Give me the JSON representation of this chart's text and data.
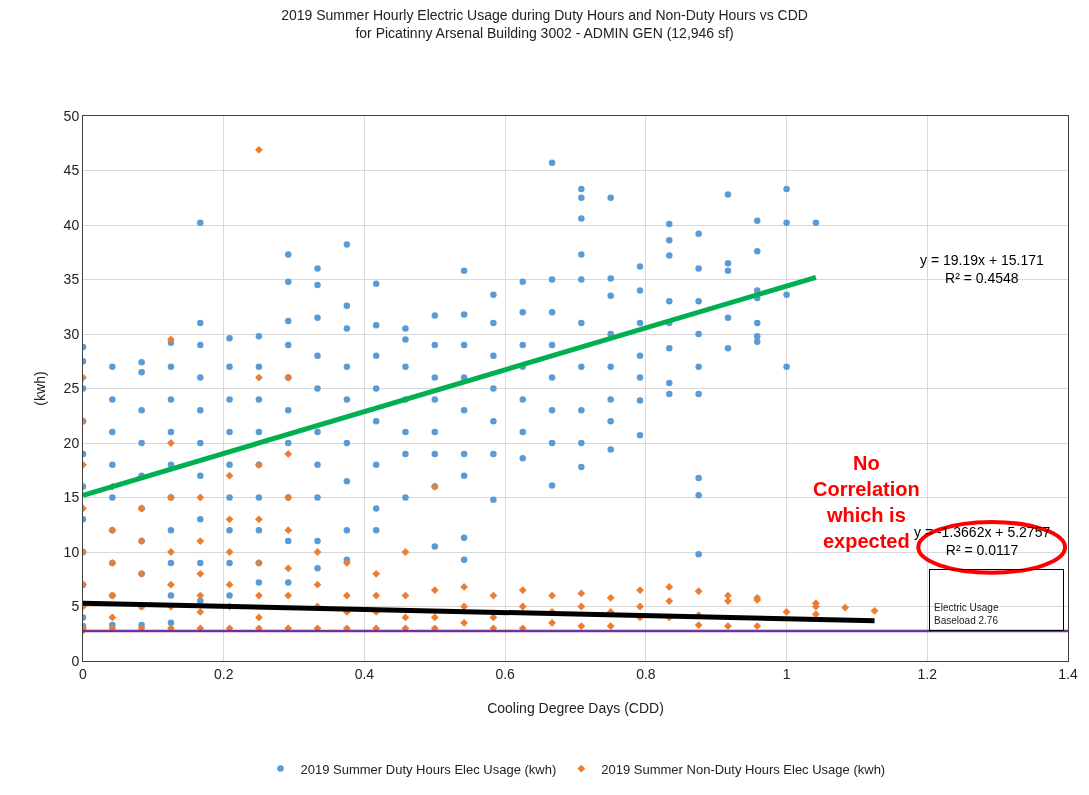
{
  "chart_data": {
    "type": "scatter",
    "title": "2019 Summer Hourly Electric Usage during Duty Hours and Non-Duty Hours vs CDD\nfor Picatinny Arsenal Building 3002 - ADMIN GEN (12,946 sf)",
    "xlabel": "Cooling Degree Days (CDD)",
    "ylabel": "(kwh)",
    "series": [
      {
        "name": "2019 Summer Duty Hours Elec Usage (kwh)",
        "color": "#5b9bd5",
        "marker": "circle",
        "x": [
          0,
          0,
          0,
          0,
          0,
          0,
          0,
          0,
          0,
          0,
          0,
          0.0417,
          0.0417,
          0.0417,
          0.0417,
          0.0417,
          0.0417,
          0.0417,
          0.0417,
          0.0417,
          0.0833,
          0.0833,
          0.0833,
          0.0833,
          0.0833,
          0.0833,
          0.0833,
          0.0833,
          0.0833,
          0.0833,
          0.125,
          0.125,
          0.125,
          0.125,
          0.125,
          0.125,
          0.125,
          0.125,
          0.125,
          0.125,
          0.1667,
          0.1667,
          0.1667,
          0.1667,
          0.1667,
          0.1667,
          0.1667,
          0.1667,
          0.1667,
          0.1667,
          0.2083,
          0.2083,
          0.2083,
          0.2083,
          0.2083,
          0.2083,
          0.2083,
          0.2083,
          0.2083,
          0.25,
          0.25,
          0.25,
          0.25,
          0.25,
          0.25,
          0.25,
          0.25,
          0.25,
          0.2917,
          0.2917,
          0.2917,
          0.2917,
          0.2917,
          0.2917,
          0.2917,
          0.2917,
          0.2917,
          0.2917,
          0.3333,
          0.3333,
          0.3333,
          0.3333,
          0.3333,
          0.3333,
          0.3333,
          0.3333,
          0.3333,
          0.3333,
          0.375,
          0.375,
          0.375,
          0.375,
          0.375,
          0.375,
          0.375,
          0.375,
          0.375,
          0.4167,
          0.4167,
          0.4167,
          0.4167,
          0.4167,
          0.4167,
          0.4167,
          0.4167,
          0.4583,
          0.4583,
          0.4583,
          0.4583,
          0.4583,
          0.4583,
          0.4583,
          0.5,
          0.5,
          0.5,
          0.5,
          0.5,
          0.5,
          0.5,
          0.5,
          0.5417,
          0.5417,
          0.5417,
          0.5417,
          0.5417,
          0.5417,
          0.5417,
          0.5417,
          0.5417,
          0.5833,
          0.5833,
          0.5833,
          0.5833,
          0.5833,
          0.5833,
          0.5833,
          0.625,
          0.625,
          0.625,
          0.625,
          0.625,
          0.625,
          0.625,
          0.6667,
          0.6667,
          0.6667,
          0.6667,
          0.6667,
          0.6667,
          0.6667,
          0.6667,
          0.7083,
          0.7083,
          0.7083,
          0.7083,
          0.7083,
          0.7083,
          0.7083,
          0.7083,
          0.7083,
          0.7083,
          0.75,
          0.75,
          0.75,
          0.75,
          0.75,
          0.75,
          0.75,
          0.75,
          0.7917,
          0.7917,
          0.7917,
          0.7917,
          0.7917,
          0.7917,
          0.7917,
          0.8333,
          0.8333,
          0.8333,
          0.8333,
          0.8333,
          0.8333,
          0.8333,
          0.8333,
          0.875,
          0.875,
          0.875,
          0.875,
          0.875,
          0.875,
          0.875,
          0.875,
          0.875,
          0.9167,
          0.9167,
          0.9167,
          0.9167,
          0.9167,
          0.9583,
          0.9583,
          0.9583,
          0.9583,
          0.9583,
          0.9583,
          0.9583,
          1,
          1,
          1,
          1,
          1.0417
        ],
        "values": [
          28.8,
          27.5,
          25,
          22,
          19,
          16,
          13,
          10,
          7,
          4,
          3.2,
          27,
          24,
          21,
          18,
          15,
          12,
          9,
          6,
          3.3,
          27.4,
          26.5,
          23,
          20,
          17,
          14,
          11,
          8,
          5,
          3.3,
          29.2,
          27,
          24,
          21,
          18,
          15,
          12,
          9,
          6,
          3.5,
          40.2,
          31,
          29,
          26,
          23,
          20,
          17,
          13,
          9,
          5.5,
          29.6,
          27,
          24,
          21,
          18,
          15,
          12,
          9,
          6,
          29.8,
          27,
          24,
          21,
          18,
          15,
          12,
          9,
          7.2,
          37.3,
          34.8,
          31.2,
          29,
          26,
          23,
          20,
          15,
          11,
          7.2,
          36,
          34.5,
          31.5,
          28,
          25,
          21,
          18,
          15,
          11,
          8.5,
          38.2,
          32.6,
          30.5,
          27,
          24,
          20,
          16.5,
          12,
          9.3,
          34.6,
          30.8,
          28,
          25,
          22,
          18,
          14,
          12,
          30.5,
          29.5,
          27,
          24,
          21,
          19,
          15,
          31.7,
          29,
          26,
          24,
          21,
          19,
          16,
          10.5,
          35.8,
          31.8,
          29,
          26,
          23,
          19,
          17,
          11.3,
          9.3,
          33.6,
          31,
          28,
          25,
          22,
          19,
          14.8,
          34.8,
          32,
          29,
          27,
          24,
          21,
          18.6,
          45.7,
          35,
          32,
          29,
          26,
          23,
          20,
          16.1,
          43.3,
          42.5,
          40.6,
          37.3,
          35,
          31,
          27,
          23,
          20,
          17.8,
          42.5,
          35.1,
          33.5,
          30,
          27,
          24,
          22,
          19.4,
          36.2,
          34,
          31,
          28,
          26,
          23.9,
          20.7,
          40.1,
          38.6,
          37.2,
          33,
          31,
          28.7,
          25.5,
          24.5,
          39.2,
          36,
          33,
          30,
          27,
          24.5,
          16.8,
          15.2,
          9.8,
          42.8,
          36.5,
          35.8,
          31.5,
          28.7,
          40.4,
          37.6,
          34,
          33.3,
          31,
          29.8,
          29.3,
          43.3,
          40.2,
          33.6,
          27,
          40.2
        ]
      },
      {
        "name": "2019 Summer Non-Duty Hours Elec Usage (kwh)",
        "color": "#ed7d31",
        "marker": "diamond",
        "x": [
          0,
          0,
          0,
          0,
          0,
          0,
          0,
          0,
          0,
          0.0417,
          0.0417,
          0.0417,
          0.0417,
          0.0417,
          0.0417,
          0.0833,
          0.0833,
          0.0833,
          0.0833,
          0.0833,
          0.125,
          0.125,
          0.125,
          0.125,
          0.125,
          0.125,
          0.125,
          0.1667,
          0.1667,
          0.1667,
          0.1667,
          0.1667,
          0.1667,
          0.2083,
          0.2083,
          0.2083,
          0.2083,
          0.2083,
          0.2083,
          0.25,
          0.25,
          0.25,
          0.25,
          0.25,
          0.25,
          0.25,
          0.25,
          0.2917,
          0.2917,
          0.2917,
          0.2917,
          0.2917,
          0.2917,
          0.2917,
          0.3333,
          0.3333,
          0.3333,
          0.3333,
          0.375,
          0.375,
          0.375,
          0.375,
          0.4167,
          0.4167,
          0.4167,
          0.4167,
          0.4583,
          0.4583,
          0.4583,
          0.4583,
          0.5,
          0.5,
          0.5,
          0.5,
          0.5417,
          0.5417,
          0.5417,
          0.5833,
          0.5833,
          0.5833,
          0.625,
          0.625,
          0.625,
          0.6667,
          0.6667,
          0.6667,
          0.7083,
          0.7083,
          0.7083,
          0.75,
          0.75,
          0.75,
          0.7917,
          0.7917,
          0.7917,
          0.8333,
          0.8333,
          0.8333,
          0.875,
          0.875,
          0.875,
          0.9167,
          0.9167,
          0.9167,
          0.9583,
          0.9583,
          0.9583,
          1,
          1.0417,
          1.0417,
          1.0417,
          1.0833,
          1.125
        ],
        "values": [
          26,
          22,
          18,
          14,
          10,
          7,
          5,
          3,
          2.8,
          16,
          12,
          9,
          6,
          4,
          3,
          14,
          11,
          8,
          5,
          3,
          29.5,
          20,
          15,
          10,
          7,
          5,
          3,
          15,
          11,
          8,
          6,
          4.5,
          3,
          17,
          13,
          10,
          7,
          5,
          3,
          46.9,
          26,
          18,
          13,
          9,
          6,
          4,
          3,
          26,
          19,
          15,
          12,
          8.5,
          6,
          3,
          10,
          7,
          5,
          3,
          9,
          6,
          4.5,
          3,
          8,
          6,
          4.5,
          3,
          10,
          6,
          4,
          3,
          16,
          6.5,
          4,
          3,
          6.8,
          5,
          3.5,
          6,
          4,
          3,
          6.5,
          5,
          3,
          6,
          4.5,
          3.5,
          6.2,
          5,
          3.2,
          5.8,
          4.5,
          3.2,
          6.5,
          5,
          4,
          6.8,
          5.5,
          4,
          6.4,
          4.2,
          3.3,
          6,
          5.5,
          3.2,
          5.8,
          5.6,
          3.2,
          4.5,
          5.3,
          5,
          4.3,
          4.9,
          4.6
        ]
      },
      {
        "type": "line",
        "color": "#00b050",
        "x": [
          0,
          1.0417
        ],
        "values": [
          15.2,
          35.2
        ]
      },
      {
        "type": "line",
        "color": "#000000",
        "x": [
          0,
          1.125
        ],
        "values": [
          5.3,
          3.7
        ]
      }
    ],
    "ref_lines": [
      {
        "axis": "y",
        "value": 2.76,
        "label": "Electric Usage\nBaseload 2.76",
        "color": "#7030a0"
      }
    ],
    "annotations": [
      "y = 19.19x + 15.171\nR² = 0.4548",
      "y = -1.3662x + 5.2757\nR² = 0.0117",
      "No\nCorrelation\nwhich is\nexpected"
    ],
    "xlim": [
      0,
      1.4
    ],
    "xticks": [
      0,
      0.2,
      0.4,
      0.6,
      0.8,
      1,
      1.2,
      1.4
    ],
    "ylim": [
      0,
      50
    ],
    "yticks": [
      0,
      5,
      10,
      15,
      20,
      25,
      30,
      35,
      40,
      45,
      50
    ],
    "grid": true,
    "legend": "bottom"
  }
}
